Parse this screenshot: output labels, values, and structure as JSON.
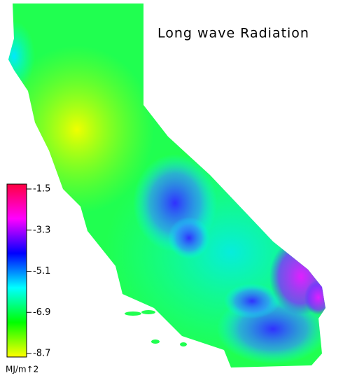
{
  "title": "Long wave Radiation",
  "colorbar": {
    "lim": [
      -8.7,
      -1.5
    ],
    "ticks": [
      -1.5,
      -3.3,
      -5.1,
      -6.9,
      -8.7
    ],
    "colors": [
      "#ffff00",
      "#00ff00",
      "#00ffff",
      "#0000ff",
      "#ff00ff",
      "#ff0040"
    ],
    "unit": "MJ/m↑2"
  }
}
